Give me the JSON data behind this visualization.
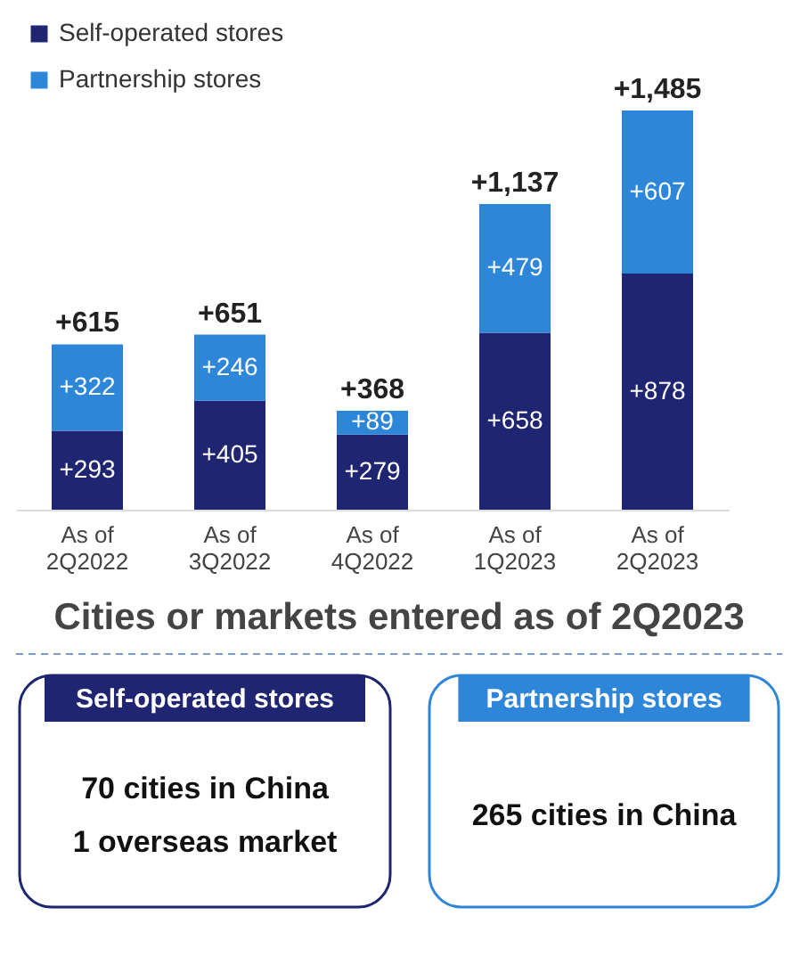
{
  "chart_data": [
    {
      "type": "bar",
      "stacked": true,
      "categories": [
        "As of\n2Q2022",
        "As of\n3Q2022",
        "As of\n4Q2022",
        "As of\n1Q2023",
        "As of\n2Q2023"
      ],
      "series": [
        {
          "name": "Self-operated stores",
          "color": "#1f2570",
          "values": [
            293,
            405,
            279,
            658,
            878
          ],
          "value_labels": [
            "+293",
            "+405",
            "+279",
            "+658",
            "+878"
          ]
        },
        {
          "name": "Partnership stores",
          "color": "#2e86d9",
          "values": [
            322,
            246,
            89,
            479,
            607
          ],
          "value_labels": [
            "+322",
            "+246",
            "+89",
            "+479",
            "+607"
          ]
        }
      ],
      "totals": [
        "+615",
        "+651",
        "+368",
        "+1,137",
        "+1,485"
      ],
      "legend": "top left",
      "grid": false
    },
    {
      "type": "other",
      "title": "Cities or markets entered as of 2Q2023",
      "annotations": [
        "Self-operated stores",
        "70 cities in China",
        "1 overseas market",
        "Partnership stores",
        "265 cities in China"
      ]
    }
  ]
}
